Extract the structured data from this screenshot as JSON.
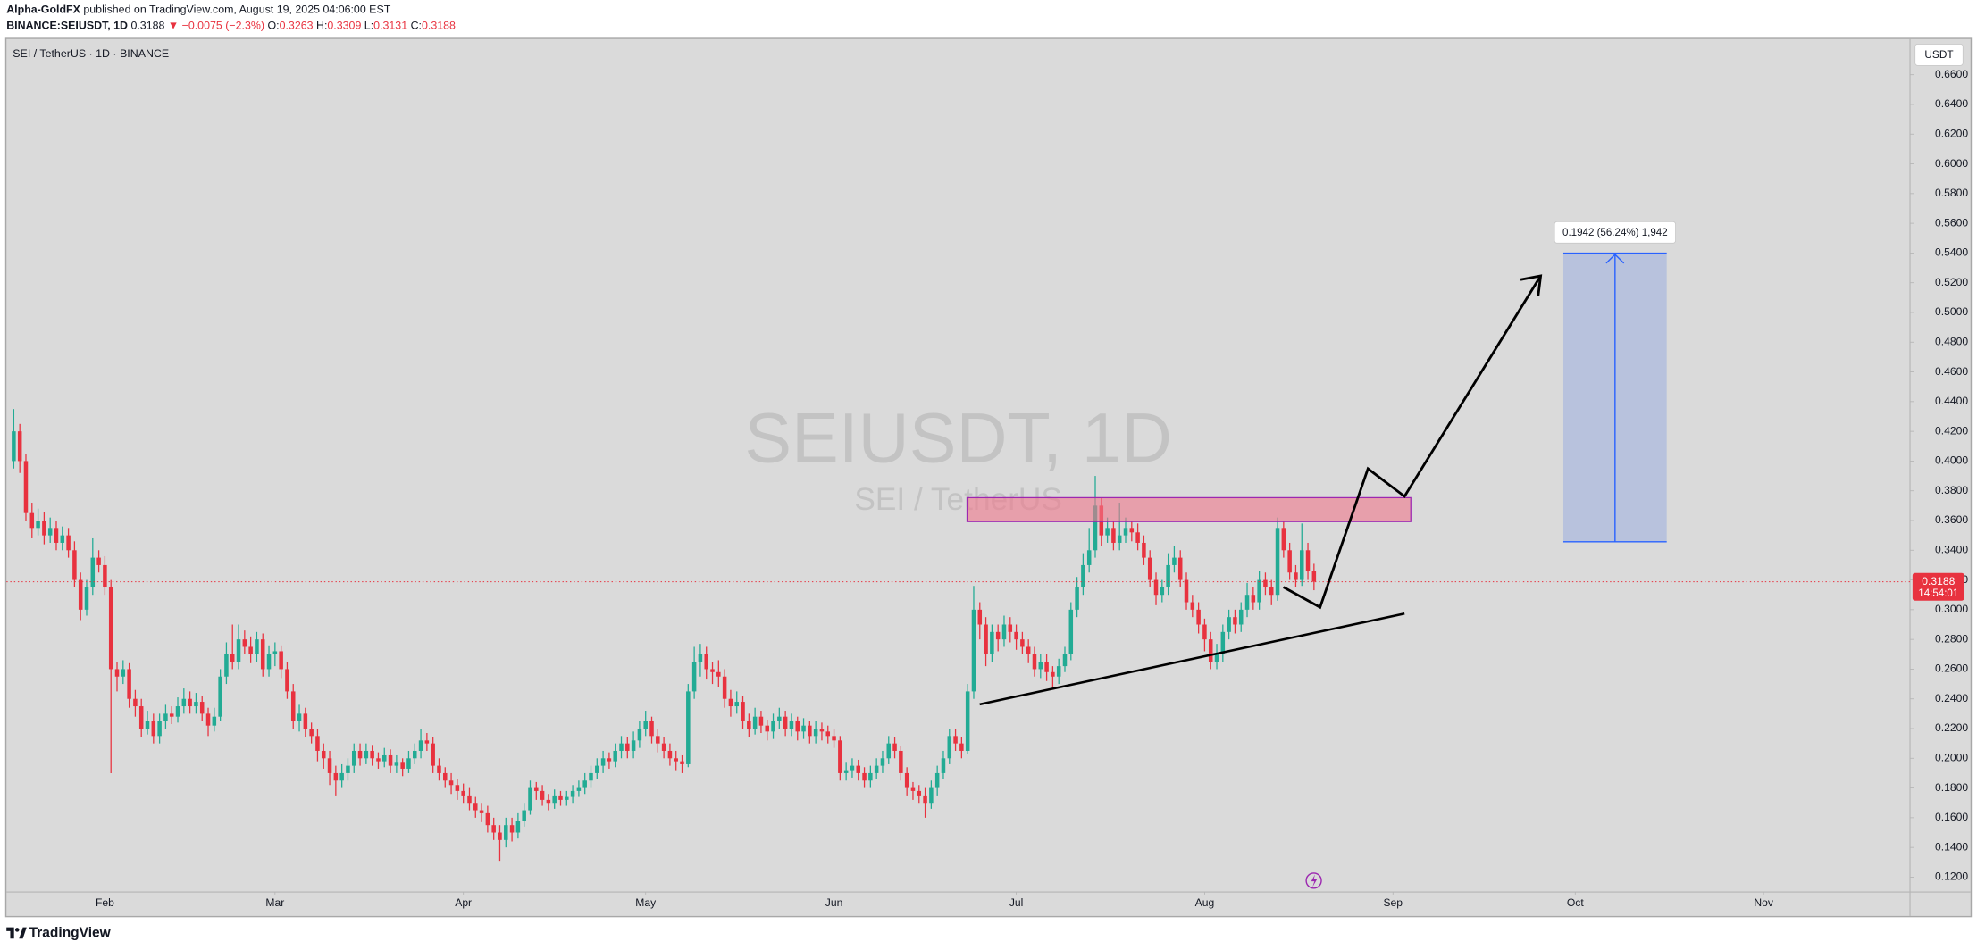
{
  "header": {
    "author": "Alpha-GoldFX",
    "published": "published on TradingView.com, August 19, 2025 04:06:00 EST",
    "symbol": "BINANCE:SEIUSDT, 1D",
    "last": "0.3188",
    "change": "▼ −0.0075 (−2.3%)",
    "ohlc": [
      {
        "label": "O:",
        "value": "0.3263"
      },
      {
        "label": "H:",
        "value": "0.3309"
      },
      {
        "label": "L:",
        "value": "0.3131"
      },
      {
        "label": "C:",
        "value": "0.3188"
      }
    ]
  },
  "footer": {
    "brand": "TradingView"
  },
  "chart_data": {
    "type": "candlestick",
    "title": "SEI / TetherUS · 1D · BINANCE",
    "watermark": {
      "symbol": "SEIUSDT, 1D",
      "name": "SEI / TetherUS"
    },
    "currency": "USDT",
    "up_color": "#22ab94",
    "down_color": "#e8323f",
    "price_label": {
      "price": "0.3188",
      "countdown": "14:54:01"
    },
    "annotation": "0.1942 (56.24%) 1,942",
    "xlim": [
      15.8,
      329.1
    ],
    "xticks": [
      {
        "value": 32,
        "label": "Feb"
      },
      {
        "value": 60,
        "label": "Mar"
      },
      {
        "value": 91,
        "label": "Apr"
      },
      {
        "value": 121,
        "label": "May"
      },
      {
        "value": 152,
        "label": "Jun"
      },
      {
        "value": 182,
        "label": "Jul"
      },
      {
        "value": 213,
        "label": "Aug"
      },
      {
        "value": 244,
        "label": "Sep"
      },
      {
        "value": 274,
        "label": "Oct"
      },
      {
        "value": 305,
        "label": "Nov"
      }
    ],
    "ylim": [
      0.11,
      0.684
    ],
    "yticks": [
      {
        "value": 0.12,
        "label": "0.1200"
      },
      {
        "value": 0.14,
        "label": "0.1400"
      },
      {
        "value": 0.16,
        "label": "0.1600"
      },
      {
        "value": 0.18,
        "label": "0.1800"
      },
      {
        "value": 0.2,
        "label": "0.2000"
      },
      {
        "value": 0.22,
        "label": "0.2200"
      },
      {
        "value": 0.24,
        "label": "0.2400"
      },
      {
        "value": 0.26,
        "label": "0.2600"
      },
      {
        "value": 0.28,
        "label": "0.2800"
      },
      {
        "value": 0.3,
        "label": "0.3000"
      },
      {
        "value": 0.32,
        "label": "0.3200"
      },
      {
        "value": 0.34,
        "label": "0.3400"
      },
      {
        "value": 0.36,
        "label": "0.3600"
      },
      {
        "value": 0.38,
        "label": "0.3800"
      },
      {
        "value": 0.4,
        "label": "0.4000"
      },
      {
        "value": 0.42,
        "label": "0.4200"
      },
      {
        "value": 0.44,
        "label": "0.4400"
      },
      {
        "value": 0.46,
        "label": "0.4600"
      },
      {
        "value": 0.48,
        "label": "0.4800"
      },
      {
        "value": 0.5,
        "label": "0.5000"
      },
      {
        "value": 0.52,
        "label": "0.5200"
      },
      {
        "value": 0.54,
        "label": "0.5400"
      },
      {
        "value": 0.56,
        "label": "0.5600"
      },
      {
        "value": 0.58,
        "label": "0.5800"
      },
      {
        "value": 0.6,
        "label": "0.6000"
      },
      {
        "value": 0.62,
        "label": "0.6200"
      },
      {
        "value": 0.64,
        "label": "0.6400"
      },
      {
        "value": 0.66,
        "label": "0.6600"
      }
    ],
    "x": [
      17,
      18,
      19,
      20,
      21,
      22,
      23,
      24,
      25,
      26,
      27,
      28,
      29,
      30,
      31,
      32,
      33,
      34,
      35,
      36,
      37,
      38,
      39,
      40,
      41,
      42,
      43,
      44,
      45,
      46,
      47,
      48,
      49,
      50,
      51,
      52,
      53,
      54,
      55,
      56,
      57,
      58,
      59,
      60,
      61,
      62,
      63,
      64,
      65,
      66,
      67,
      68,
      69,
      70,
      71,
      72,
      73,
      74,
      75,
      76,
      77,
      78,
      79,
      80,
      81,
      82,
      83,
      84,
      85,
      86,
      87,
      88,
      89,
      90,
      91,
      92,
      93,
      94,
      95,
      96,
      97,
      98,
      99,
      100,
      101,
      102,
      103,
      104,
      105,
      106,
      107,
      108,
      109,
      110,
      111,
      112,
      113,
      114,
      115,
      116,
      117,
      118,
      119,
      120,
      121,
      122,
      123,
      124,
      125,
      126,
      127,
      128,
      129,
      130,
      131,
      132,
      133,
      134,
      135,
      136,
      137,
      138,
      139,
      140,
      141,
      142,
      143,
      144,
      145,
      146,
      147,
      148,
      149,
      150,
      151,
      152,
      153,
      154,
      155,
      156,
      157,
      158,
      159,
      160,
      161,
      162,
      163,
      164,
      165,
      166,
      167,
      168,
      169,
      170,
      171,
      172,
      173,
      174,
      175,
      176,
      177,
      178,
      179,
      180,
      181,
      182,
      183,
      184,
      185,
      186,
      187,
      188,
      189,
      190,
      191,
      192,
      193,
      194,
      195,
      196,
      197,
      198,
      199,
      200,
      201,
      202,
      203,
      204,
      205,
      206,
      207,
      208,
      209,
      210,
      211,
      212,
      213,
      214,
      215,
      216,
      217,
      218,
      219,
      220,
      221,
      222,
      223,
      224,
      225,
      226,
      227,
      228,
      229,
      230,
      231
    ],
    "open": [
      0.4,
      0.42,
      0.4,
      0.365,
      0.355,
      0.36,
      0.35,
      0.355,
      0.345,
      0.35,
      0.34,
      0.32,
      0.3,
      0.315,
      0.335,
      0.33,
      0.315,
      0.26,
      0.255,
      0.26,
      0.24,
      0.235,
      0.22,
      0.225,
      0.215,
      0.225,
      0.23,
      0.228,
      0.235,
      0.24,
      0.235,
      0.238,
      0.23,
      0.222,
      0.228,
      0.255,
      0.27,
      0.265,
      0.28,
      0.275,
      0.27,
      0.28,
      0.26,
      0.27,
      0.272,
      0.26,
      0.245,
      0.225,
      0.23,
      0.22,
      0.215,
      0.205,
      0.2,
      0.19,
      0.185,
      0.19,
      0.195,
      0.205,
      0.2,
      0.205,
      0.2,
      0.198,
      0.202,
      0.195,
      0.197,
      0.193,
      0.2,
      0.205,
      0.212,
      0.21,
      0.195,
      0.19,
      0.185,
      0.182,
      0.178,
      0.175,
      0.17,
      0.165,
      0.163,
      0.155,
      0.15,
      0.145,
      0.155,
      0.15,
      0.158,
      0.165,
      0.18,
      0.178,
      0.172,
      0.17,
      0.175,
      0.172,
      0.174,
      0.178,
      0.18,
      0.185,
      0.19,
      0.195,
      0.2,
      0.198,
      0.205,
      0.21,
      0.205,
      0.212,
      0.22,
      0.225,
      0.215,
      0.21,
      0.205,
      0.2,
      0.198,
      0.196,
      0.245,
      0.265,
      0.27,
      0.26,
      0.258,
      0.255,
      0.24,
      0.235,
      0.238,
      0.225,
      0.22,
      0.228,
      0.222,
      0.218,
      0.225,
      0.228,
      0.22,
      0.225,
      0.218,
      0.222,
      0.215,
      0.22,
      0.218,
      0.215,
      0.212,
      0.19,
      0.192,
      0.195,
      0.19,
      0.185,
      0.19,
      0.195,
      0.2,
      0.21,
      0.205,
      0.19,
      0.18,
      0.178,
      0.175,
      0.17,
      0.18,
      0.19,
      0.2,
      0.215,
      0.21,
      0.205,
      0.245,
      0.3,
      0.29,
      0.27,
      0.285,
      0.28,
      0.29,
      0.285,
      0.28,
      0.275,
      0.27,
      0.26,
      0.265,
      0.258,
      0.255,
      0.262,
      0.27,
      0.3,
      0.315,
      0.33,
      0.34,
      0.37,
      0.35,
      0.355,
      0.345,
      0.35,
      0.355,
      0.352,
      0.345,
      0.335,
      0.32,
      0.31,
      0.315,
      0.33,
      0.335,
      0.32,
      0.305,
      0.3,
      0.29,
      0.28,
      0.265,
      0.27,
      0.285,
      0.295,
      0.29,
      0.3,
      0.31,
      0.305,
      0.32,
      0.315,
      0.31,
      0.355,
      0.34,
      0.325,
      0.32,
      0.34,
      0.3263
    ],
    "high": [
      0.435,
      0.425,
      0.405,
      0.372,
      0.368,
      0.366,
      0.362,
      0.36,
      0.356,
      0.355,
      0.346,
      0.325,
      0.32,
      0.348,
      0.34,
      0.336,
      0.32,
      0.265,
      0.266,
      0.264,
      0.246,
      0.24,
      0.232,
      0.23,
      0.23,
      0.236,
      0.235,
      0.241,
      0.247,
      0.245,
      0.244,
      0.242,
      0.234,
      0.234,
      0.26,
      0.278,
      0.29,
      0.29,
      0.286,
      0.282,
      0.285,
      0.284,
      0.276,
      0.278,
      0.276,
      0.265,
      0.25,
      0.236,
      0.234,
      0.224,
      0.22,
      0.21,
      0.205,
      0.195,
      0.196,
      0.2,
      0.21,
      0.21,
      0.21,
      0.209,
      0.204,
      0.207,
      0.206,
      0.202,
      0.2,
      0.205,
      0.21,
      0.22,
      0.217,
      0.214,
      0.2,
      0.194,
      0.19,
      0.186,
      0.183,
      0.18,
      0.174,
      0.17,
      0.168,
      0.16,
      0.155,
      0.16,
      0.16,
      0.163,
      0.17,
      0.185,
      0.184,
      0.182,
      0.176,
      0.179,
      0.178,
      0.178,
      0.182,
      0.185,
      0.19,
      0.195,
      0.2,
      0.205,
      0.204,
      0.21,
      0.215,
      0.214,
      0.218,
      0.225,
      0.232,
      0.228,
      0.22,
      0.214,
      0.21,
      0.205,
      0.202,
      0.25,
      0.275,
      0.277,
      0.275,
      0.265,
      0.266,
      0.26,
      0.246,
      0.245,
      0.242,
      0.23,
      0.234,
      0.232,
      0.226,
      0.23,
      0.234,
      0.232,
      0.23,
      0.228,
      0.227,
      0.225,
      0.225,
      0.224,
      0.222,
      0.22,
      0.215,
      0.197,
      0.2,
      0.199,
      0.194,
      0.195,
      0.2,
      0.205,
      0.215,
      0.214,
      0.208,
      0.194,
      0.184,
      0.182,
      0.18,
      0.185,
      0.195,
      0.205,
      0.22,
      0.22,
      0.214,
      0.25,
      0.316,
      0.305,
      0.295,
      0.29,
      0.29,
      0.296,
      0.295,
      0.29,
      0.285,
      0.28,
      0.275,
      0.27,
      0.27,
      0.262,
      0.267,
      0.275,
      0.305,
      0.322,
      0.338,
      0.355,
      0.39,
      0.375,
      0.362,
      0.36,
      0.372,
      0.362,
      0.36,
      0.358,
      0.35,
      0.34,
      0.325,
      0.32,
      0.338,
      0.343,
      0.34,
      0.325,
      0.31,
      0.305,
      0.294,
      0.285,
      0.277,
      0.29,
      0.3,
      0.3,
      0.305,
      0.318,
      0.315,
      0.326,
      0.325,
      0.32,
      0.362,
      0.36,
      0.345,
      0.33,
      0.358,
      0.345,
      0.3309
    ],
    "low": [
      0.395,
      0.392,
      0.36,
      0.348,
      0.35,
      0.344,
      0.345,
      0.34,
      0.34,
      0.335,
      0.315,
      0.293,
      0.296,
      0.31,
      0.325,
      0.31,
      0.19,
      0.245,
      0.25,
      0.234,
      0.228,
      0.214,
      0.216,
      0.21,
      0.21,
      0.22,
      0.223,
      0.224,
      0.23,
      0.23,
      0.23,
      0.225,
      0.215,
      0.218,
      0.225,
      0.25,
      0.26,
      0.26,
      0.27,
      0.264,
      0.265,
      0.255,
      0.255,
      0.262,
      0.254,
      0.24,
      0.22,
      0.218,
      0.214,
      0.21,
      0.198,
      0.193,
      0.182,
      0.175,
      0.18,
      0.185,
      0.19,
      0.195,
      0.196,
      0.195,
      0.193,
      0.194,
      0.19,
      0.19,
      0.188,
      0.19,
      0.196,
      0.2,
      0.205,
      0.19,
      0.185,
      0.18,
      0.176,
      0.172,
      0.17,
      0.165,
      0.16,
      0.157,
      0.15,
      0.145,
      0.131,
      0.14,
      0.144,
      0.146,
      0.154,
      0.162,
      0.172,
      0.168,
      0.165,
      0.166,
      0.168,
      0.168,
      0.17,
      0.174,
      0.176,
      0.18,
      0.186,
      0.19,
      0.193,
      0.194,
      0.2,
      0.2,
      0.2,
      0.207,
      0.215,
      0.21,
      0.204,
      0.2,
      0.195,
      0.192,
      0.19,
      0.194,
      0.24,
      0.255,
      0.253,
      0.25,
      0.248,
      0.234,
      0.228,
      0.23,
      0.22,
      0.214,
      0.216,
      0.217,
      0.212,
      0.213,
      0.22,
      0.215,
      0.215,
      0.212,
      0.213,
      0.21,
      0.21,
      0.212,
      0.21,
      0.207,
      0.185,
      0.185,
      0.187,
      0.185,
      0.18,
      0.18,
      0.186,
      0.19,
      0.196,
      0.2,
      0.185,
      0.175,
      0.172,
      0.17,
      0.16,
      0.166,
      0.175,
      0.186,
      0.196,
      0.205,
      0.2,
      0.203,
      0.24,
      0.28,
      0.262,
      0.265,
      0.272,
      0.275,
      0.278,
      0.273,
      0.27,
      0.264,
      0.255,
      0.254,
      0.252,
      0.248,
      0.25,
      0.258,
      0.266,
      0.295,
      0.31,
      0.325,
      0.335,
      0.343,
      0.345,
      0.34,
      0.34,
      0.345,
      0.346,
      0.34,
      0.33,
      0.315,
      0.303,
      0.305,
      0.31,
      0.325,
      0.315,
      0.3,
      0.295,
      0.284,
      0.272,
      0.26,
      0.26,
      0.265,
      0.28,
      0.284,
      0.285,
      0.295,
      0.3,
      0.3,
      0.31,
      0.303,
      0.306,
      0.335,
      0.32,
      0.315,
      0.316,
      0.32,
      0.3131
    ],
    "close": [
      0.42,
      0.4,
      0.365,
      0.355,
      0.36,
      0.35,
      0.355,
      0.345,
      0.35,
      0.34,
      0.32,
      0.3,
      0.315,
      0.335,
      0.33,
      0.315,
      0.26,
      0.255,
      0.26,
      0.24,
      0.235,
      0.22,
      0.225,
      0.215,
      0.225,
      0.23,
      0.228,
      0.235,
      0.24,
      0.235,
      0.238,
      0.23,
      0.222,
      0.228,
      0.255,
      0.27,
      0.265,
      0.28,
      0.275,
      0.27,
      0.28,
      0.26,
      0.27,
      0.272,
      0.26,
      0.245,
      0.225,
      0.23,
      0.22,
      0.215,
      0.205,
      0.2,
      0.19,
      0.185,
      0.19,
      0.195,
      0.205,
      0.2,
      0.205,
      0.2,
      0.198,
      0.202,
      0.195,
      0.197,
      0.193,
      0.2,
      0.205,
      0.212,
      0.21,
      0.195,
      0.19,
      0.185,
      0.182,
      0.178,
      0.175,
      0.17,
      0.165,
      0.163,
      0.155,
      0.15,
      0.145,
      0.155,
      0.15,
      0.158,
      0.165,
      0.18,
      0.178,
      0.172,
      0.17,
      0.175,
      0.172,
      0.174,
      0.178,
      0.18,
      0.185,
      0.19,
      0.195,
      0.2,
      0.198,
      0.205,
      0.21,
      0.205,
      0.212,
      0.22,
      0.225,
      0.215,
      0.21,
      0.205,
      0.2,
      0.198,
      0.196,
      0.245,
      0.265,
      0.27,
      0.26,
      0.258,
      0.255,
      0.24,
      0.235,
      0.238,
      0.225,
      0.22,
      0.228,
      0.222,
      0.218,
      0.225,
      0.228,
      0.22,
      0.225,
      0.218,
      0.222,
      0.215,
      0.22,
      0.218,
      0.215,
      0.212,
      0.19,
      0.192,
      0.195,
      0.19,
      0.185,
      0.19,
      0.195,
      0.2,
      0.21,
      0.205,
      0.19,
      0.18,
      0.178,
      0.175,
      0.17,
      0.18,
      0.19,
      0.2,
      0.215,
      0.21,
      0.205,
      0.245,
      0.3,
      0.29,
      0.27,
      0.285,
      0.28,
      0.29,
      0.285,
      0.28,
      0.275,
      0.27,
      0.26,
      0.265,
      0.258,
      0.255,
      0.262,
      0.27,
      0.3,
      0.315,
      0.33,
      0.34,
      0.37,
      0.35,
      0.355,
      0.345,
      0.35,
      0.355,
      0.352,
      0.345,
      0.335,
      0.32,
      0.31,
      0.315,
      0.33,
      0.335,
      0.32,
      0.305,
      0.3,
      0.29,
      0.28,
      0.265,
      0.27,
      0.285,
      0.295,
      0.29,
      0.3,
      0.31,
      0.305,
      0.32,
      0.315,
      0.31,
      0.355,
      0.34,
      0.325,
      0.32,
      0.34,
      0.3263,
      0.3188
    ]
  }
}
